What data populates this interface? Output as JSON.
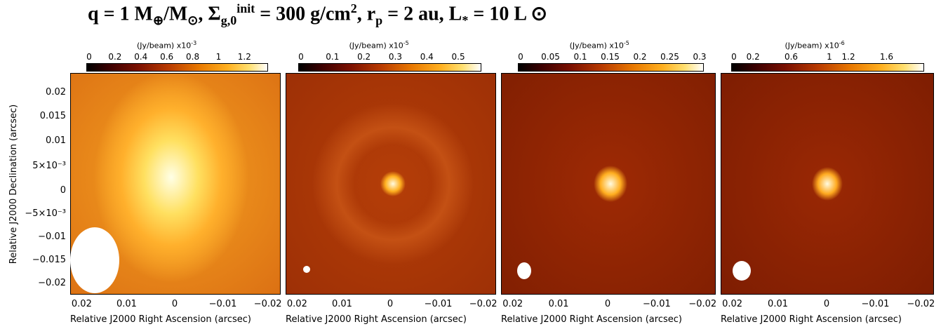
{
  "title": {
    "q_part": "q = 1 M",
    "q_sub1": "⊕",
    "q_mid": "/M",
    "q_sub2": "⊙",
    "sigma_part": ", Σ",
    "sigma_sub": "g,0",
    "sigma_sup": "init",
    "sigma_val": " = 300 g/cm",
    "sigma_sup2": "2",
    "rp_part": ",  r",
    "rp_sub": "p",
    "rp_val": " = 2 au,  L",
    "l_sub": "*",
    "l_val": " = 10 L ",
    "l_sun": "⊙"
  },
  "chart_data": [
    {
      "type": "heatmap",
      "colorbar": {
        "unit": "(Jy/beam)",
        "scale": "x10",
        "exponent": "-3",
        "ticks": [
          "0",
          "0.2",
          "0.4",
          "0.6",
          "0.8",
          "1",
          "1.2"
        ],
        "range": [
          0,
          1.35
        ]
      },
      "xlabel": "Relative J2000 Right Ascension (arcsec)",
      "ylabel": "Relative J2000 Declination (arcsec)",
      "xticks": [
        "0.02",
        "0.01",
        "0",
        "−0.01",
        "−0.02"
      ],
      "yticks": [
        "0.02",
        "0.015",
        "0.01",
        "5×10⁻³",
        "0",
        "−5×10⁻³",
        "−0.01",
        "−0.015",
        "−0.02"
      ],
      "xlim": [
        0.023,
        -0.023
      ],
      "ylim": [
        -0.023,
        0.023
      ],
      "peak": {
        "x": 0.0,
        "y": 0.0
      }
    },
    {
      "type": "heatmap",
      "colorbar": {
        "unit": "(Jy/beam)",
        "scale": "x10",
        "exponent": "-5",
        "ticks": [
          "0",
          "0.1",
          "0.2",
          "0.3",
          "0.4",
          "0.5"
        ],
        "range": [
          0,
          0.56
        ]
      },
      "xlabel": "Relative J2000 Right Ascension (arcsec)",
      "xticks": [
        "0.02",
        "0.01",
        "0",
        "−0.01",
        "−0.02"
      ],
      "peak": {
        "x": -0.0005,
        "y": 0.0
      }
    },
    {
      "type": "heatmap",
      "colorbar": {
        "unit": "(Jy/beam)",
        "scale": "x10",
        "exponent": "-5",
        "ticks": [
          "0",
          "0.05",
          "0.1",
          "0.15",
          "0.2",
          "0.25",
          "0.3"
        ],
        "range": [
          0,
          0.3
        ]
      },
      "xlabel": "Relative J2000 Right Ascension (arcsec)",
      "xticks": [
        "0.02",
        "0.01",
        "0",
        "−0.01",
        "−0.02"
      ],
      "peak": {
        "x": -0.0005,
        "y": 0.0
      }
    },
    {
      "type": "heatmap",
      "colorbar": {
        "unit": "(Jy/beam)",
        "scale": "x10",
        "exponent": "-6",
        "ticks": [
          "0",
          "0.2",
          "0.6",
          "1",
          "1.2",
          "1.6"
        ],
        "range": [
          0,
          1.95
        ]
      },
      "xlabel": "Relative J2000 Right Ascension (arcsec)",
      "xticks": [
        "0.02",
        "0.01",
        "0",
        "−0.01",
        "−0.02"
      ],
      "peak": {
        "x": 0.0,
        "y": 0.0
      }
    }
  ]
}
